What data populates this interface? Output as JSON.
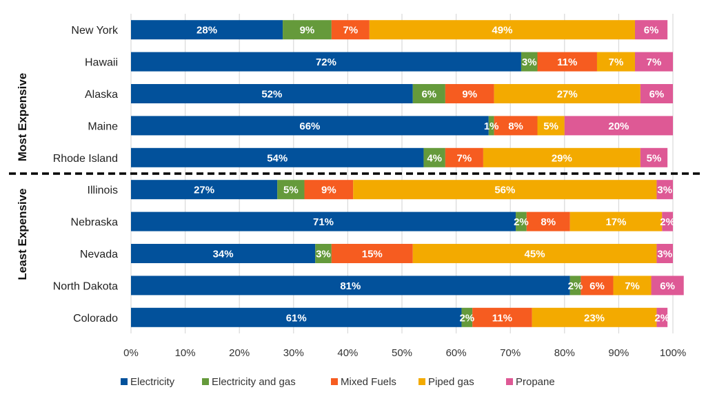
{
  "chart_data": {
    "type": "bar",
    "orientation": "horizontal",
    "stacked": "percent",
    "title": "",
    "xlabel": "",
    "ylabel": "",
    "xlim": [
      0,
      100
    ],
    "grid": true,
    "legend_position": "bottom",
    "x_ticks": [
      "0%",
      "10%",
      "20%",
      "30%",
      "40%",
      "50%",
      "60%",
      "70%",
      "80%",
      "90%",
      "100%"
    ],
    "groups": [
      {
        "label": "Most Expensive",
        "categories": [
          "New York",
          "Hawaii",
          "Alaska",
          "Maine",
          "Rhode Island"
        ]
      },
      {
        "label": "Least Expensive",
        "categories": [
          "Illinois",
          "Nebraska",
          "Nevada",
          "North Dakota",
          "Colorado"
        ]
      }
    ],
    "categories": [
      "New York",
      "Hawaii",
      "Alaska",
      "Maine",
      "Rhode Island",
      "Illinois",
      "Nebraska",
      "Nevada",
      "North Dakota",
      "Colorado"
    ],
    "series": [
      {
        "name": "Electricity",
        "color": "#02519B",
        "values": [
          28,
          72,
          52,
          66,
          54,
          27,
          71,
          34,
          81,
          61
        ]
      },
      {
        "name": "Electricity and gas",
        "color": "#659A3B",
        "values": [
          9,
          3,
          6,
          1,
          4,
          5,
          2,
          3,
          2,
          2
        ]
      },
      {
        "name": "Mixed Fuels",
        "color": "#F65C20",
        "values": [
          7,
          11,
          9,
          8,
          7,
          9,
          8,
          15,
          6,
          11
        ]
      },
      {
        "name": "Piped gas",
        "color": "#F3AA00",
        "values": [
          49,
          7,
          27,
          5,
          29,
          56,
          17,
          45,
          7,
          23
        ]
      },
      {
        "name": "Propane",
        "color": "#DE5995",
        "values": [
          6,
          7,
          6,
          20,
          5,
          3,
          2,
          3,
          6,
          2
        ]
      }
    ],
    "value_suffix": "%",
    "annotations": [
      "Dashed line separates Most Expensive and Least Expensive states"
    ]
  }
}
